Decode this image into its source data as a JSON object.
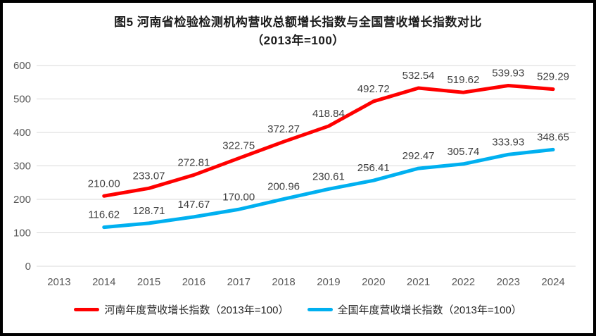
{
  "title": {
    "line1": "图5  河南省检验检测机构营收总额增长指数与全国营收增长指数对比",
    "line2": "（2013年=100）"
  },
  "chart_data": {
    "type": "line",
    "categories": [
      "2013",
      "2014",
      "2015",
      "2016",
      "2017",
      "2018",
      "2019",
      "2020",
      "2021",
      "2022",
      "2023",
      "2024"
    ],
    "series": [
      {
        "name": "河南年度营收增长指数（2013年=100）",
        "color": "#FF0000",
        "values": [
          null,
          210.0,
          233.07,
          272.81,
          322.75,
          372.27,
          418.84,
          492.72,
          532.54,
          519.62,
          539.93,
          529.29
        ]
      },
      {
        "name": "全国年度营收增长指数（2013年=100）",
        "color": "#00B0F0",
        "values": [
          null,
          116.62,
          128.71,
          147.67,
          170.0,
          200.96,
          230.61,
          256.41,
          292.47,
          305.74,
          333.93,
          348.65
        ]
      }
    ],
    "y_ticks": [
      0,
      100,
      200,
      300,
      400,
      500,
      600
    ],
    "ylim": [
      0,
      600
    ],
    "grid": true,
    "legend_position": "bottom",
    "data_labels": true,
    "data_label_decimals": 2
  },
  "colors": {
    "grid": "#D9D9D9",
    "axis_text": "#595959",
    "data_label_text": "#404040",
    "background": "#FFFFFF",
    "border": "#000000"
  }
}
